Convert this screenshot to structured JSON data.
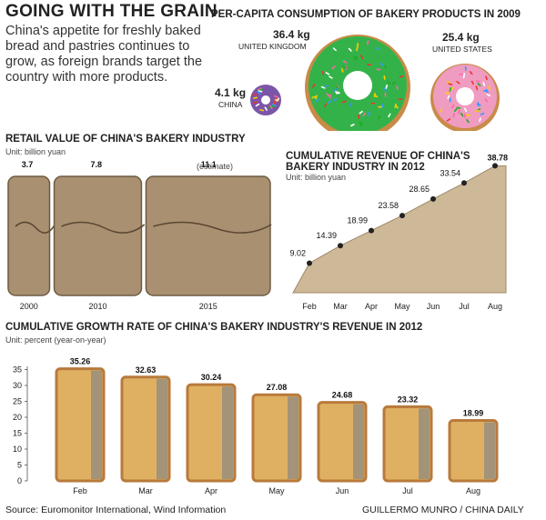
{
  "header": {
    "title": "GOING WITH THE GRAIN",
    "intro": "China's appetite for freshly baked bread and pastries continues to grow, as foreign brands target the country with more products."
  },
  "donuts": {
    "title": "PER-CAPITA CONSUMPTION OF BAKERY PRODUCTS IN 2009",
    "items": [
      {
        "value": "36.4 kg",
        "country": "UNITED KINGDOM"
      },
      {
        "value": "25.4 kg",
        "country": "UNITED STATES"
      },
      {
        "value": "4.1 kg",
        "country": "CHINA"
      }
    ]
  },
  "retail": {
    "title": "RETAIL VALUE OF CHINA'S BAKERY INDUSTRY",
    "unit": "Unit: billion yuan",
    "estimate_note": "(estimate)"
  },
  "revenue": {
    "title_line1": "CUMULATIVE REVENUE OF CHINA'S",
    "title_line2": "BAKERY INDUSTRY IN 2012",
    "unit": "Unit: billion yuan"
  },
  "growth": {
    "title": "CUMULATIVE GROWTH RATE OF CHINA'S BAKERY INDUSTRY'S REVENUE IN 2012",
    "unit": "Unit: percent (year-on-year)"
  },
  "footer": {
    "source": "Source: Euromonitor International, Wind Information",
    "credit": "GUILLERMO MUNRO / CHINA DAILY"
  },
  "colors": {
    "breadCrust": "#b87a3c",
    "breadCrumb": "#e0b062",
    "loaf": "#a89071",
    "area": "#cdb898",
    "ukDonut": "#34b24a",
    "usDonut": "#ef9cc0",
    "cnDonut": "#7b56a8"
  },
  "chart_data": [
    {
      "type": "bar",
      "title": "RETAIL VALUE OF CHINA'S BAKERY INDUSTRY",
      "ylabel": "Unit: billion yuan",
      "categories": [
        "2000",
        "2010",
        "2015"
      ],
      "values": [
        3.7,
        7.8,
        11.1
      ]
    },
    {
      "type": "area",
      "title": "CUMULATIVE REVENUE OF CHINA'S BAKERY INDUSTRY IN 2012",
      "ylabel": "Unit: billion yuan",
      "categories": [
        "Feb",
        "Mar",
        "Apr",
        "May",
        "Jun",
        "Jul",
        "Aug"
      ],
      "values": [
        9.02,
        14.39,
        18.99,
        23.58,
        28.65,
        33.54,
        38.78
      ],
      "ylim": [
        0,
        40
      ]
    },
    {
      "type": "bar",
      "title": "CUMULATIVE GROWTH RATE OF CHINA'S BAKERY INDUSTRY'S REVENUE IN 2012",
      "ylabel": "Unit: percent (year-on-year)",
      "categories": [
        "Feb",
        "Mar",
        "Apr",
        "May",
        "Jun",
        "Jul",
        "Aug"
      ],
      "values": [
        35.26,
        32.63,
        30.24,
        27.08,
        24.68,
        23.32,
        18.99
      ],
      "yticks": [
        0,
        5,
        10,
        15,
        20,
        25,
        30,
        35
      ],
      "ylim": [
        0,
        38
      ]
    }
  ]
}
